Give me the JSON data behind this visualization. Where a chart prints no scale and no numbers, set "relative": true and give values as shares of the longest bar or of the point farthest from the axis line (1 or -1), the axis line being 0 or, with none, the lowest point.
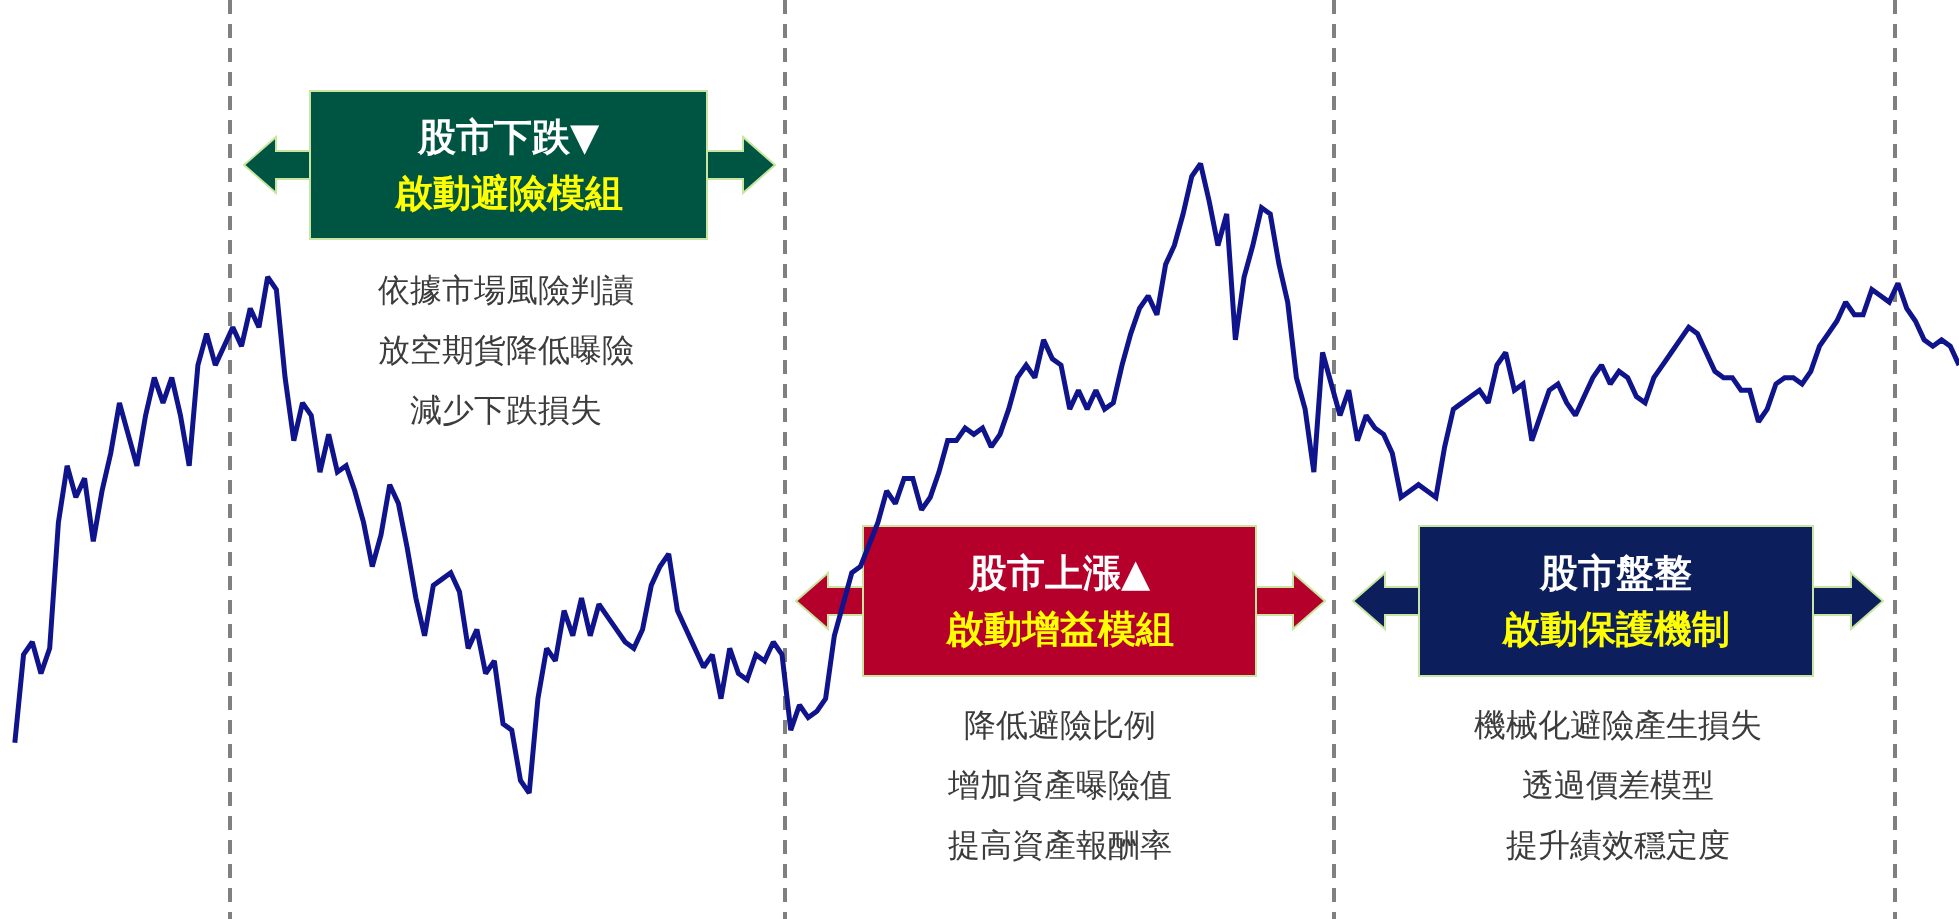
{
  "chart_data": {
    "type": "line",
    "relative": true,
    "categories": [
      null,
      null,
      null,
      null,
      null,
      null,
      null,
      null,
      null,
      null,
      null,
      null,
      null,
      null,
      null,
      null,
      null,
      null,
      null,
      null,
      null,
      null,
      null,
      null,
      null,
      null,
      null,
      null,
      null,
      null,
      null,
      null,
      null,
      null,
      null,
      null,
      null,
      null,
      null,
      null,
      null,
      null,
      null,
      null,
      null,
      null,
      null,
      null,
      null,
      null,
      null,
      null,
      null,
      null,
      null,
      null,
      null,
      null,
      null,
      null,
      null,
      null,
      null,
      null,
      null,
      null,
      null,
      null,
      null,
      null,
      null,
      null,
      null,
      null,
      null,
      null,
      null,
      null,
      null,
      null,
      null,
      null,
      null,
      null,
      null,
      null,
      null,
      null,
      null,
      null,
      null,
      null,
      null,
      null,
      null,
      null,
      null,
      null,
      null,
      null,
      null,
      null,
      null,
      null,
      null,
      null,
      null,
      null,
      null,
      null,
      null,
      null,
      null,
      null,
      null,
      null,
      null,
      null,
      null,
      null,
      null,
      null,
      null,
      null,
      null,
      null,
      null,
      null,
      null,
      null,
      null,
      null,
      null,
      null,
      null,
      null,
      null,
      null,
      null,
      null,
      null,
      null,
      null,
      null,
      null,
      null,
      null,
      null,
      null,
      null,
      null,
      null,
      null,
      null,
      null,
      null,
      null,
      null,
      null,
      null,
      null,
      null,
      null,
      null,
      null,
      null,
      null,
      null,
      null,
      null,
      null,
      null,
      null,
      null,
      null,
      null,
      null,
      null,
      null,
      null,
      null,
      null,
      null,
      null,
      null,
      null,
      null,
      null,
      null,
      null,
      null,
      null,
      null,
      null,
      null,
      null,
      null,
      null,
      null,
      null,
      null,
      null,
      null,
      null,
      null,
      null,
      null,
      null,
      null,
      null,
      null,
      null,
      null,
      null,
      null,
      null,
      null,
      null,
      null,
      null,
      null,
      null,
      null,
      null
    ],
    "series": [
      {
        "color": "#10148c",
        "values": [
          0.08,
          0.22,
          0.24,
          0.19,
          0.23,
          0.43,
          0.52,
          0.47,
          0.5,
          0.4,
          0.48,
          0.54,
          0.62,
          0.57,
          0.52,
          0.6,
          0.66,
          0.62,
          0.66,
          0.6,
          0.52,
          0.68,
          0.73,
          0.68,
          0.71,
          0.74,
          0.71,
          0.77,
          0.74,
          0.82,
          0.8,
          0.66,
          0.56,
          0.62,
          0.6,
          0.51,
          0.57,
          0.51,
          0.52,
          0.48,
          0.43,
          0.36,
          0.41,
          0.49,
          0.46,
          0.39,
          0.31,
          0.25,
          0.33,
          0.34,
          0.35,
          0.32,
          0.23,
          0.26,
          0.19,
          0.21,
          0.11,
          0.1,
          0.02,
          0,
          0.15,
          0.23,
          0.21,
          0.29,
          0.25,
          0.31,
          0.25,
          0.3,
          0.28,
          0.26,
          0.24,
          0.23,
          0.26,
          0.33,
          0.36,
          0.38,
          0.29,
          0.26,
          0.23,
          0.2,
          0.22,
          0.15,
          0.23,
          0.19,
          0.18,
          0.22,
          0.21,
          0.24,
          0.22,
          0.1,
          0.14,
          0.12,
          0.13,
          0.15,
          0.25,
          null,
          0.35,
          0.36,
          null,
          0.43,
          0.48,
          0.46,
          0.5,
          0.5,
          0.45,
          0.47,
          0.51,
          0.56,
          0.56,
          0.58,
          0.57,
          0.58,
          0.55,
          0.57,
          0.61,
          0.66,
          0.68,
          0.66,
          0.72,
          0.69,
          0.68,
          0.61,
          0.64,
          0.61,
          0.64,
          0.61,
          0.62,
          0.68,
          0.73,
          0.77,
          0.79,
          0.76,
          0.84,
          0.87,
          0.92,
          0.98,
          1,
          0.94,
          0.87,
          0.92,
          0.72,
          0.82,
          0.87,
          0.93,
          0.92,
          0.84,
          0.78,
          0.66,
          0.61,
          0.51,
          0.7,
          0.65,
          0.6,
          0.64,
          0.56,
          0.6,
          0.58,
          0.57,
          0.54,
          0.47,
          0.48,
          0.49,
          0.48,
          0.47,
          0.55,
          0.61,
          0.62,
          0.63,
          0.64,
          0.62,
          0.68,
          0.7,
          0.64,
          0.65,
          0.56,
          0.6,
          0.64,
          0.65,
          0.62,
          0.6,
          0.63,
          0.66,
          0.68,
          0.65,
          0.67,
          0.66,
          0.63,
          0.62,
          0.66,
          0.68,
          0.7,
          0.72,
          0.74,
          0.73,
          0.7,
          0.67,
          0.66,
          0.66,
          0.64,
          0.64,
          0.59,
          0.61,
          0.65,
          0.66,
          0.66,
          0.65,
          0.67,
          0.71,
          0.73,
          0.75,
          0.78,
          0.76,
          0.76,
          0.8,
          0.79,
          0.78,
          0.81,
          0.77,
          0.75,
          0.72,
          0.71,
          0.72,
          0.71,
          0.68
        ]
      }
    ],
    "annotations": [
      "股市下跌▼",
      "啟動避險模組",
      "依據市場風險判讀",
      "放空期貨降低曝險",
      "減少下跌損失",
      "股市上漲▲",
      "啟動增益模組",
      "降低避險比例",
      "增加資產曝險值",
      "提高資產報酬率",
      "股市盤整",
      "啟動保護機制",
      "機械化避險產生損失",
      "透過價差模型",
      "提升績效穩定度"
    ],
    "line_style": "solid",
    "marker": "none",
    "grid": false,
    "legend": false
  }
}
